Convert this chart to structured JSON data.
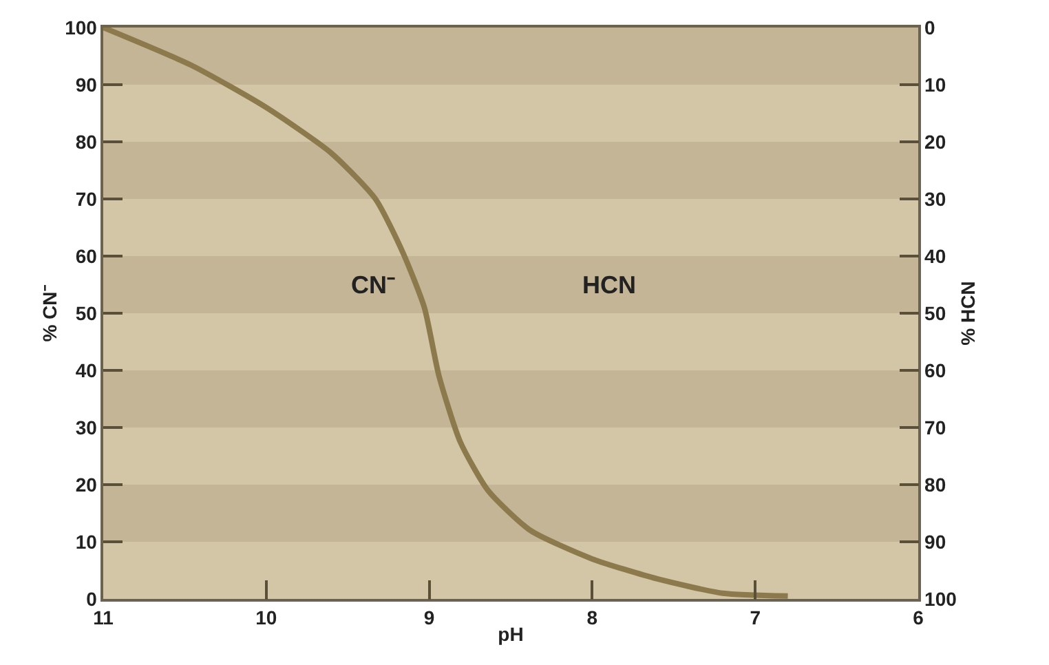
{
  "chart_data": {
    "type": "line",
    "xlabel": "pH",
    "ylabel": "% CN⁻",
    "y2label": "% HCN",
    "x": [
      11,
      10.46,
      10,
      9.6,
      9.33,
      9.16,
      9.03,
      8.94,
      8.81,
      8.64,
      8.38,
      8,
      7.6,
      7.2,
      6.8
    ],
    "series": [
      {
        "color": "#8c7a4c",
        "values": [
          100,
          93.4,
          86,
          78,
          70,
          60.5,
          51,
          39,
          27.5,
          19,
          12,
          7,
          3.5,
          1,
          0.5
        ]
      }
    ],
    "xlim": [
      11,
      6
    ],
    "xticks": [
      11,
      10,
      9,
      8,
      7,
      6
    ],
    "ylim": [
      0,
      100
    ],
    "yticks": [
      0,
      10,
      20,
      30,
      40,
      50,
      60,
      70,
      80,
      90,
      100
    ],
    "y2lim": [
      100,
      0
    ],
    "y2ticks": [
      0,
      10,
      20,
      30,
      40,
      50,
      60,
      70,
      80,
      90,
      100
    ],
    "bands": [
      {
        "axis": "y",
        "from": 10,
        "to": 20,
        "color": "#c4b596"
      },
      {
        "axis": "y",
        "from": 30,
        "to": 40,
        "color": "#c4b596"
      },
      {
        "axis": "y",
        "from": 50,
        "to": 60,
        "color": "#c4b596"
      },
      {
        "axis": "y",
        "from": 70,
        "to": 80,
        "color": "#c4b596"
      },
      {
        "axis": "y",
        "from": 90,
        "to": 100,
        "color": "#c4b596"
      },
      {
        "axis": "y",
        "from": 0,
        "to": 10,
        "color": "#d3c6a6"
      },
      {
        "axis": "y",
        "from": 20,
        "to": 30,
        "color": "#d3c6a6"
      },
      {
        "axis": "y",
        "from": 40,
        "to": 50,
        "color": "#d3c6a6"
      },
      {
        "axis": "y",
        "from": 60,
        "to": 70,
        "color": "#d3c6a6"
      },
      {
        "axis": "y",
        "from": 80,
        "to": 90,
        "color": "#d3c6a6"
      }
    ],
    "annotations": [
      "CN⁻",
      "HCN"
    ],
    "grid": false,
    "marker": "none",
    "line_style": "solid"
  }
}
